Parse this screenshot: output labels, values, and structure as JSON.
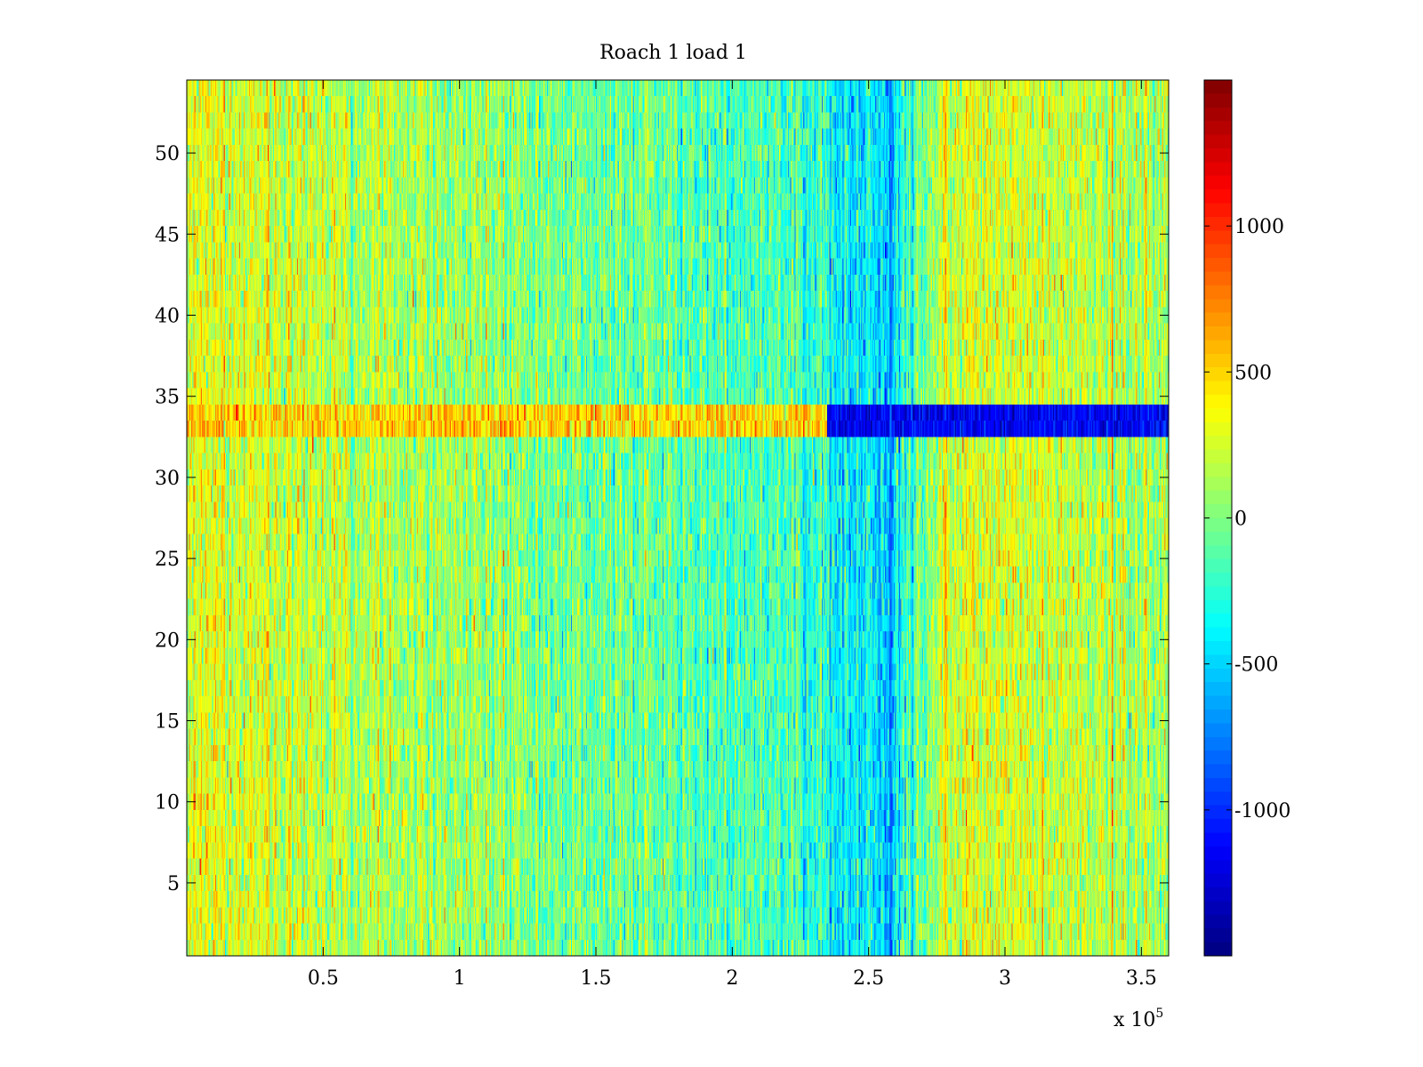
{
  "chart_data": {
    "type": "heatmap",
    "title": "Roach 1 load 1",
    "xlabel": "",
    "ylabel": "",
    "x_scale_note": "x 10",
    "x_scale_exponent": "5",
    "xlim": [
      0,
      360000
    ],
    "ylim": [
      0.5,
      54.5
    ],
    "rows": 54,
    "xticks": [
      50000,
      100000,
      150000,
      200000,
      250000,
      300000,
      350000
    ],
    "xtick_labels": [
      "0.5",
      "1",
      "1.5",
      "2",
      "2.5",
      "3",
      "3.5"
    ],
    "yticks": [
      5,
      10,
      15,
      20,
      25,
      30,
      35,
      40,
      45,
      50
    ],
    "ytick_labels": [
      "5",
      "10",
      "15",
      "20",
      "25",
      "30",
      "35",
      "40",
      "45",
      "50"
    ],
    "colorbar": {
      "colormap": "jet",
      "clim": [
        -1500,
        1500
      ],
      "ticks": [
        -1000,
        -500,
        0,
        500,
        1000
      ],
      "tick_labels": [
        "-1000",
        "-500",
        "0",
        "500",
        "1000"
      ]
    },
    "column_trend": {
      "x": [
        0,
        30000,
        80000,
        150000,
        200000,
        230000,
        240000,
        255000,
        258000,
        262000,
        280000,
        320000,
        360000
      ],
      "mean": [
        300,
        250,
        120,
        -50,
        -150,
        -250,
        -380,
        -420,
        -600,
        -300,
        250,
        220,
        150
      ]
    },
    "features": [
      {
        "description_rows": [
          33,
          34
        ],
        "x_range": [
          0,
          235000
        ],
        "mean": 500
      },
      {
        "description_rows": [
          33,
          34
        ],
        "x_range": [
          235000,
          360000
        ],
        "mean": -1150
      },
      {
        "vertical_line_x": 258000,
        "mean": -800
      }
    ],
    "grid": false
  }
}
